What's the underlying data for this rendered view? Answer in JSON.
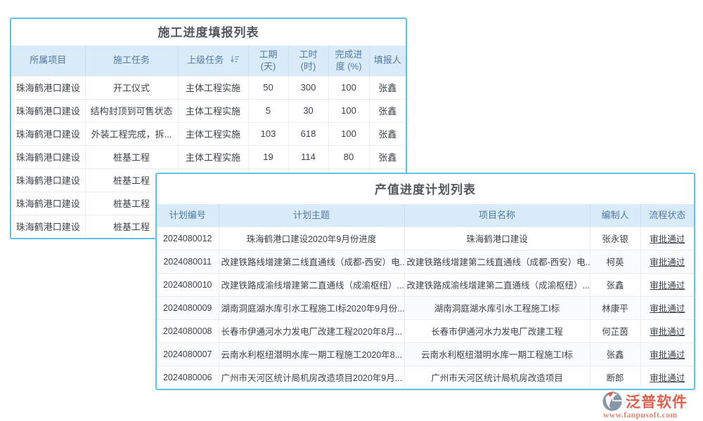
{
  "colors": {
    "panel_border": "#5EC3EC",
    "header_bg": "#D9EBF8",
    "header_text": "#527AA3",
    "link_blue": "#4293E4",
    "status_green": "#4FAD55",
    "title_text": "#54585D",
    "logo_red": "#DF604E"
  },
  "report_table": {
    "title": "施工进度填报列表",
    "columns": [
      "所属项目",
      "施工任务",
      "上级任务",
      "工期 (天)",
      "工时 (时)",
      "完成进度 (%)",
      "填报人"
    ],
    "sort_icon": "sort-descending-icon",
    "rows": [
      [
        "珠海鹤港口建设",
        "开工仪式",
        "主体工程实施",
        "50",
        "300",
        "100",
        "张鑫"
      ],
      [
        "珠海鹤港口建设",
        "结构封顶到可售状态",
        "主体工程实施",
        "5",
        "30",
        "100",
        "张鑫"
      ],
      [
        "珠海鹤港口建设",
        "外装工程完成，拆...",
        "主体工程实施",
        "103",
        "618",
        "100",
        "张鑫"
      ],
      [
        "珠海鹤港口建设",
        "桩基工程",
        "主体工程实施",
        "19",
        "114",
        "80",
        "张鑫"
      ],
      [
        "珠海鹤港口建设",
        "桩基工程",
        "",
        "",
        "",
        "",
        ""
      ],
      [
        "珠海鹤港口建设",
        "桩基工程",
        "",
        "",
        "",
        "",
        ""
      ],
      [
        "珠海鹤港口建设",
        "桩基工程",
        "",
        "",
        "",
        "",
        ""
      ]
    ]
  },
  "plan_table": {
    "title": "产值进度计划列表",
    "columns": [
      "计划编号",
      "计划主题",
      "项目名称",
      "编制人",
      "流程状态"
    ],
    "rows": [
      {
        "no": "2024080012",
        "subject": "珠海鹤港口建设2020年9月份进度",
        "project": "珠海鹤港口建设",
        "author": "张永银",
        "status": "审批通过"
      },
      {
        "no": "2024080011",
        "subject": "改建铁路线增建第二线直通线（成都-西安）电...",
        "project": "改建铁路线增建第二线直通线（成都-西安）电...",
        "author": "柯英",
        "status": "审批通过"
      },
      {
        "no": "2024080010",
        "subject": "改建铁路成渝线增建第二直通线（成渝枢纽）...",
        "project": "改建铁路成渝线增建第二直通线（成渝枢纽）...",
        "author": "张鑫",
        "status": "审批通过"
      },
      {
        "no": "2024080009",
        "subject": "湖南洞庭湖水库引水工程施工I标2020年9月份...",
        "project": "湖南洞庭湖水库引水工程施工I标",
        "author": "林康平",
        "status": "审批通过"
      },
      {
        "no": "2024080008",
        "subject": "长春市伊通河水力发电厂改建工程2020年8月...",
        "project": "长春市伊通河水力发电厂改建工程",
        "author": "何芷茵",
        "status": "审批通过"
      },
      {
        "no": "2024080007",
        "subject": "云南水利枢纽潜明水库一期工程施工2020年8...",
        "project": "云南水利枢纽潜明水库一期工程施工I标",
        "author": "张鑫",
        "status": "审批通过"
      },
      {
        "no": "2024080006",
        "subject": "广州市天河区统计局机房改造项目2020年9月...",
        "project": "广州市天河区统计局机房改造项目",
        "author": "断郎",
        "status": "审批通过"
      }
    ]
  },
  "branding": {
    "logo_text": "泛普软件",
    "logo_url": "www.fanpusoft.com"
  }
}
